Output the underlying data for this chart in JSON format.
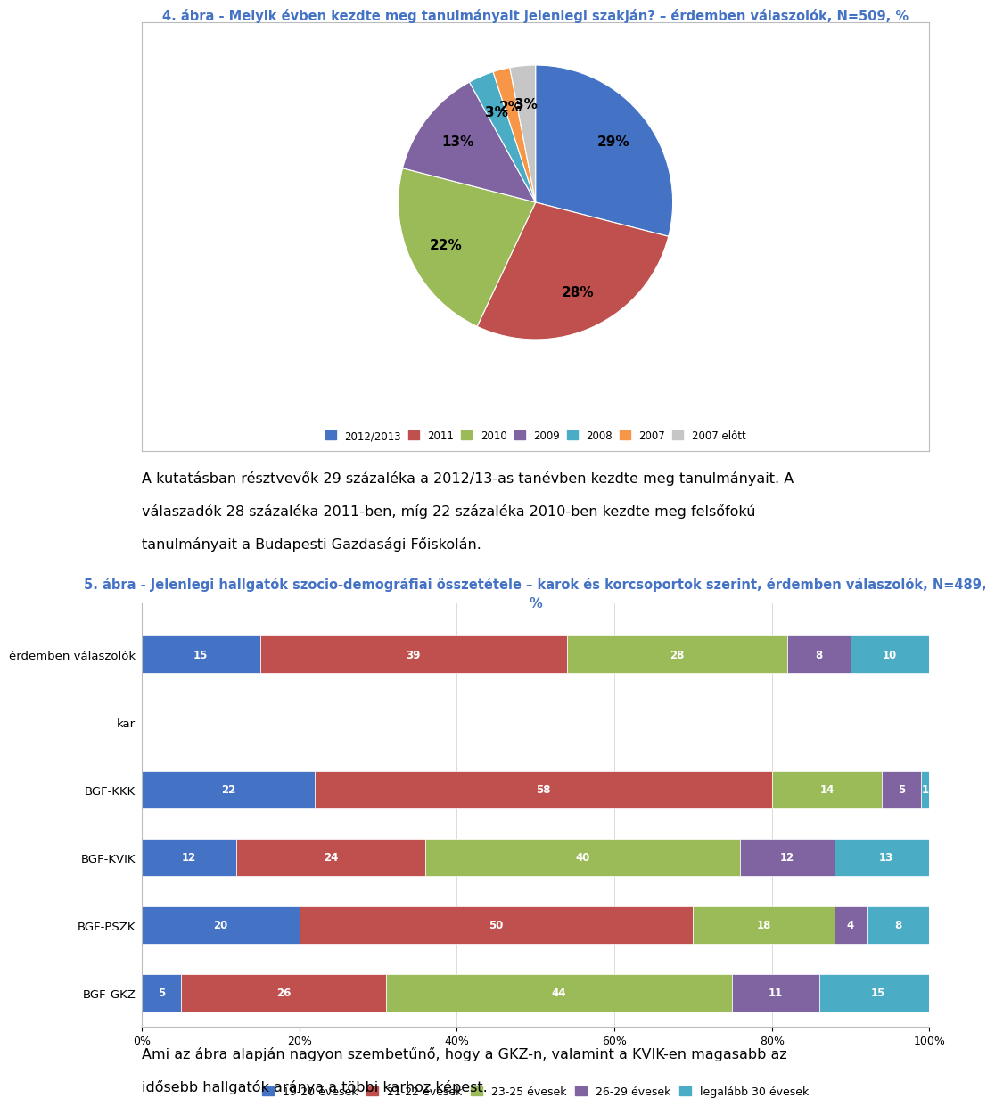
{
  "title1": "4. ábra - Melyik évben kezdte meg tanulmányait jelenlegi szakján? – érdemben válaszolók, N=509, %",
  "title2": "5. ábra - Jelenlegi hallgatók szocio-demográfiai összetétele – karok és korcsoportok szerint, érdemben válaszolók, N=489,\n%",
  "pie_labels": [
    "2012/2013",
    "2011",
    "2010",
    "2009",
    "2008",
    "2007",
    "2007 előtt"
  ],
  "pie_values": [
    29,
    28,
    22,
    13,
    3,
    2,
    3
  ],
  "pie_colors": [
    "#4472C4",
    "#C0504D",
    "#9BBB59",
    "#8064A2",
    "#4BACC6",
    "#F79646",
    "#C6C6C6"
  ],
  "bar_categories": [
    "érdemben válaszolók",
    "kar",
    "BGF-KKK",
    "BGF-KVIK",
    "BGF-PSZK",
    "BGF-GKZ"
  ],
  "bar_data_19_20": [
    15,
    0,
    22,
    12,
    20,
    5
  ],
  "bar_data_21_22": [
    39,
    0,
    58,
    24,
    50,
    26
  ],
  "bar_data_23_25": [
    28,
    0,
    14,
    40,
    18,
    44
  ],
  "bar_data_26_29": [
    8,
    0,
    5,
    12,
    4,
    11
  ],
  "bar_data_30": [
    10,
    0,
    1,
    13,
    8,
    15
  ],
  "bar_colors": [
    "#4472C4",
    "#C0504D",
    "#9BBB59",
    "#8064A2",
    "#4BACC6"
  ],
  "bar_legend_labels": [
    "19-20 évesek",
    "21-22 évesek",
    "23-25 évesek",
    "26-29 évesek",
    "legalább 30 évesek"
  ],
  "text1_line1": "A kutatásban résztvevők 29 százaléka a 2012/13-as tanévben kezdte meg tanulmányait. A",
  "text1_line2": "válaszadók 28 százaléka 2011-ben, míg 22 százaléka 2010-ben kezdte meg felsőfokú",
  "text1_line3": "tanulmányait a Budapesti Gazdasági Főiskolán.",
  "text2_line1": "Ami az ábra alapján nagyon szembetűnő, hogy a GKZ-n, valamint a KVIK-en magasabb az",
  "text2_line2": "idősebb hallgatók aránya a többi karhoz képest.",
  "bg_color": "#FFFFFF",
  "title_color": "#4472C4",
  "title_fs": 10.5,
  "body_fs": 11.5
}
